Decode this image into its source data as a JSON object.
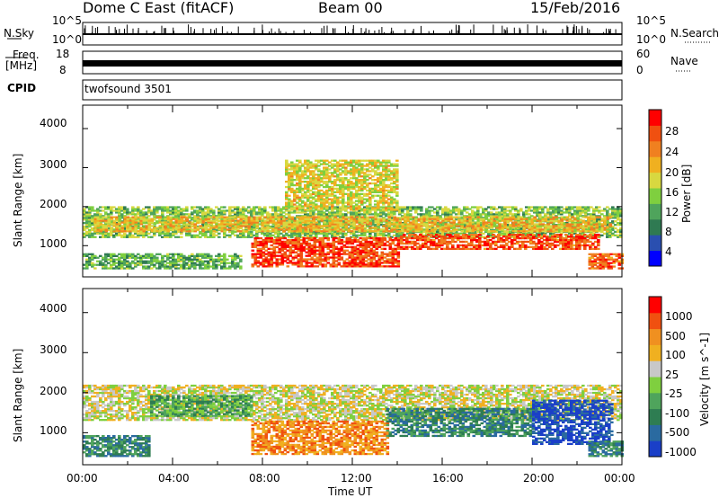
{
  "header": {
    "station": "Dome C East (fitACF)",
    "beam": "Beam 00",
    "date": "15/Feb/2016"
  },
  "aux_panels": {
    "nsky_label": "N.Sky",
    "nsky_ticks": [
      "10^5",
      "10^0"
    ],
    "nsearch_label": "N.Search",
    "nsearch_ticks": [
      "10^5",
      "10^0"
    ],
    "freq_label_1": "Freq.",
    "freq_label_2": "[MHz]",
    "freq_ticks": [
      "18",
      "8"
    ],
    "nave_label": "Nave",
    "nave_ticks": [
      "60",
      "0"
    ],
    "cpid_label": "CPID",
    "cpid_value": "twofsound 3501"
  },
  "chart_data": [
    {
      "type": "heatmap",
      "name": "power",
      "ylabel": "Slant Range [km]",
      "yticks": [
        "1000",
        "2000",
        "3000",
        "4000"
      ],
      "ylim": [
        200,
        4600
      ],
      "xlim": [
        0,
        24
      ],
      "colorbar": {
        "label": "Power [dB]",
        "ticks": [
          "28",
          "24",
          "20",
          "16",
          "12",
          "8",
          "4"
        ],
        "range": [
          0,
          32
        ],
        "colors": [
          "#0000ff",
          "#2a4fb0",
          "#2f7a52",
          "#4fa45c",
          "#7fcf3f",
          "#d8d840",
          "#f0b020",
          "#f08020",
          "#f05010",
          "#ff0000"
        ]
      },
      "bands": [
        {
          "t0": 0,
          "t1": 24,
          "r0": 1200,
          "r1": 2000,
          "level": 14
        },
        {
          "t0": 0.5,
          "t1": 23.5,
          "r0": 1350,
          "r1": 1750,
          "level": 20
        },
        {
          "t0": 7.5,
          "t1": 14,
          "r0": 450,
          "r1": 1200,
          "level": 28
        },
        {
          "t0": 14,
          "t1": 23,
          "r0": 900,
          "r1": 1300,
          "level": 27
        },
        {
          "t0": 22.5,
          "t1": 24,
          "r0": 400,
          "r1": 800,
          "level": 26
        },
        {
          "t0": 9,
          "t1": 14,
          "r0": 1900,
          "r1": 3200,
          "level": 18
        },
        {
          "t0": 0,
          "t1": 7,
          "r0": 400,
          "r1": 800,
          "level": 12
        }
      ]
    },
    {
      "type": "heatmap",
      "name": "velocity",
      "ylabel": "Slant Range [km]",
      "yticks": [
        "1000",
        "2000",
        "3000",
        "4000"
      ],
      "ylim": [
        200,
        4600
      ],
      "xlim": [
        0,
        24
      ],
      "xticks": [
        "00:00",
        "04:00",
        "08:00",
        "12:00",
        "16:00",
        "20:00",
        "00:00"
      ],
      "xlabel": "Time UT",
      "colorbar": {
        "label": "Velocity [m s^-1]",
        "ticks": [
          "1000",
          "500",
          "100",
          "25",
          "-25",
          "-100",
          "-500",
          "-1000"
        ],
        "colors": [
          "#1a3fc8",
          "#2a6aa0",
          "#2e7d52",
          "#4fa45c",
          "#7fcf3f",
          "#c8c8c8",
          "#f0b020",
          "#f09020",
          "#f05010",
          "#ff0000"
        ]
      },
      "bands": [
        {
          "t0": 0,
          "t1": 24,
          "r0": 1300,
          "r1": 2200,
          "level": 5
        },
        {
          "t0": 0,
          "t1": 3,
          "r0": 400,
          "r1": 900,
          "level": 2
        },
        {
          "t0": 7.5,
          "t1": 13.5,
          "r0": 450,
          "r1": 1300,
          "level": 7
        },
        {
          "t0": 13.5,
          "t1": 20,
          "r0": 900,
          "r1": 1600,
          "level": 2
        },
        {
          "t0": 20,
          "t1": 23.5,
          "r0": 700,
          "r1": 1800,
          "level": 0
        },
        {
          "t0": 22.5,
          "t1": 24,
          "r0": 400,
          "r1": 800,
          "level": 2
        },
        {
          "t0": 3,
          "t1": 7.5,
          "r0": 1400,
          "r1": 1900,
          "level": 3
        }
      ]
    }
  ]
}
